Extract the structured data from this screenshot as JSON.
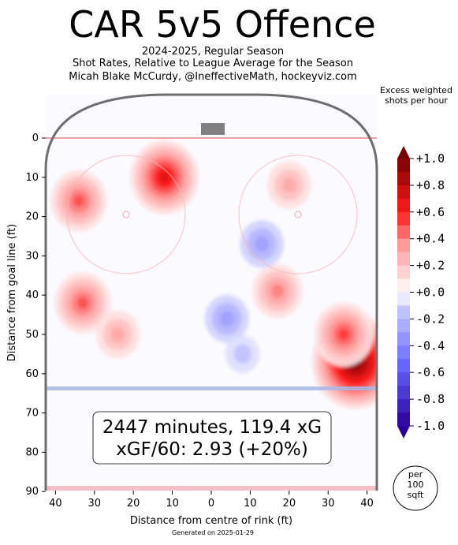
{
  "header": {
    "title": "CAR 5v5 Offence",
    "subtitle_1": "2024-2025, Regular Season",
    "subtitle_2": "Shot Rates, Relative to League Average for the Season",
    "subtitle_3": "Micah Blake McCurdy, @IneffectiveMath, hockeyviz.com"
  },
  "footer": {
    "generated": "Generated on 2025-01-29"
  },
  "colorbar": {
    "title": "Excess weighted shots per hour",
    "ticks": [
      "+1.0",
      "+0.8",
      "+0.6",
      "+0.4",
      "+0.2",
      "+0.0",
      "-0.2",
      "-0.4",
      "-0.6",
      "-0.8",
      "-1.0"
    ],
    "tick_values": [
      1.0,
      0.8,
      0.6,
      0.4,
      0.2,
      0.0,
      -0.2,
      -0.4,
      -0.6,
      -0.8,
      -1.0
    ],
    "range": [
      -1.0,
      1.0
    ],
    "unit_badge": "per 100 sqft",
    "colors": {
      "max": "#7a0000",
      "high": "#ff1a1a",
      "mid_high": "#ff9a9a",
      "low_pos": "#ffd0d0",
      "zero": "#ffffff",
      "low_neg": "#c8c8ff",
      "mid_neg": "#6666ff",
      "min": "#2a0099"
    }
  },
  "chart_data": {
    "type": "heatmap",
    "title": "CAR 5v5 Offence",
    "xlabel": "Distance from centre of rink (ft)",
    "ylabel": "Distance from goal line (ft)",
    "x_range": [
      -42.5,
      42.5
    ],
    "y_range": [
      0,
      90
    ],
    "y_inverted": true,
    "x_ticks": [
      40,
      30,
      20,
      10,
      0,
      10,
      20,
      30,
      40
    ],
    "y_ticks": [
      0,
      10,
      20,
      30,
      40,
      50,
      60,
      70,
      80,
      90
    ],
    "grid": false,
    "value_range": [
      -1.0,
      1.0
    ],
    "hotspots": [
      {
        "x": -12,
        "y": 10,
        "value": 0.7
      },
      {
        "x": -34,
        "y": 16,
        "value": 0.5
      },
      {
        "x": -33,
        "y": 42,
        "value": 0.5
      },
      {
        "x": -24,
        "y": 50,
        "value": 0.3
      },
      {
        "x": 37,
        "y": 57,
        "value": 1.0
      },
      {
        "x": 34,
        "y": 50,
        "value": 0.55
      },
      {
        "x": 20,
        "y": 12,
        "value": 0.3
      },
      {
        "x": 17,
        "y": 39,
        "value": 0.4
      },
      {
        "x": 13,
        "y": 27,
        "value": -0.3
      },
      {
        "x": 4,
        "y": 46,
        "value": -0.3
      },
      {
        "x": 8,
        "y": 55,
        "value": -0.15
      }
    ],
    "annotation": {
      "line_1": "2447 minutes, 119.4 xG",
      "line_2": "xGF/60: 2.93 (+20%)"
    }
  }
}
